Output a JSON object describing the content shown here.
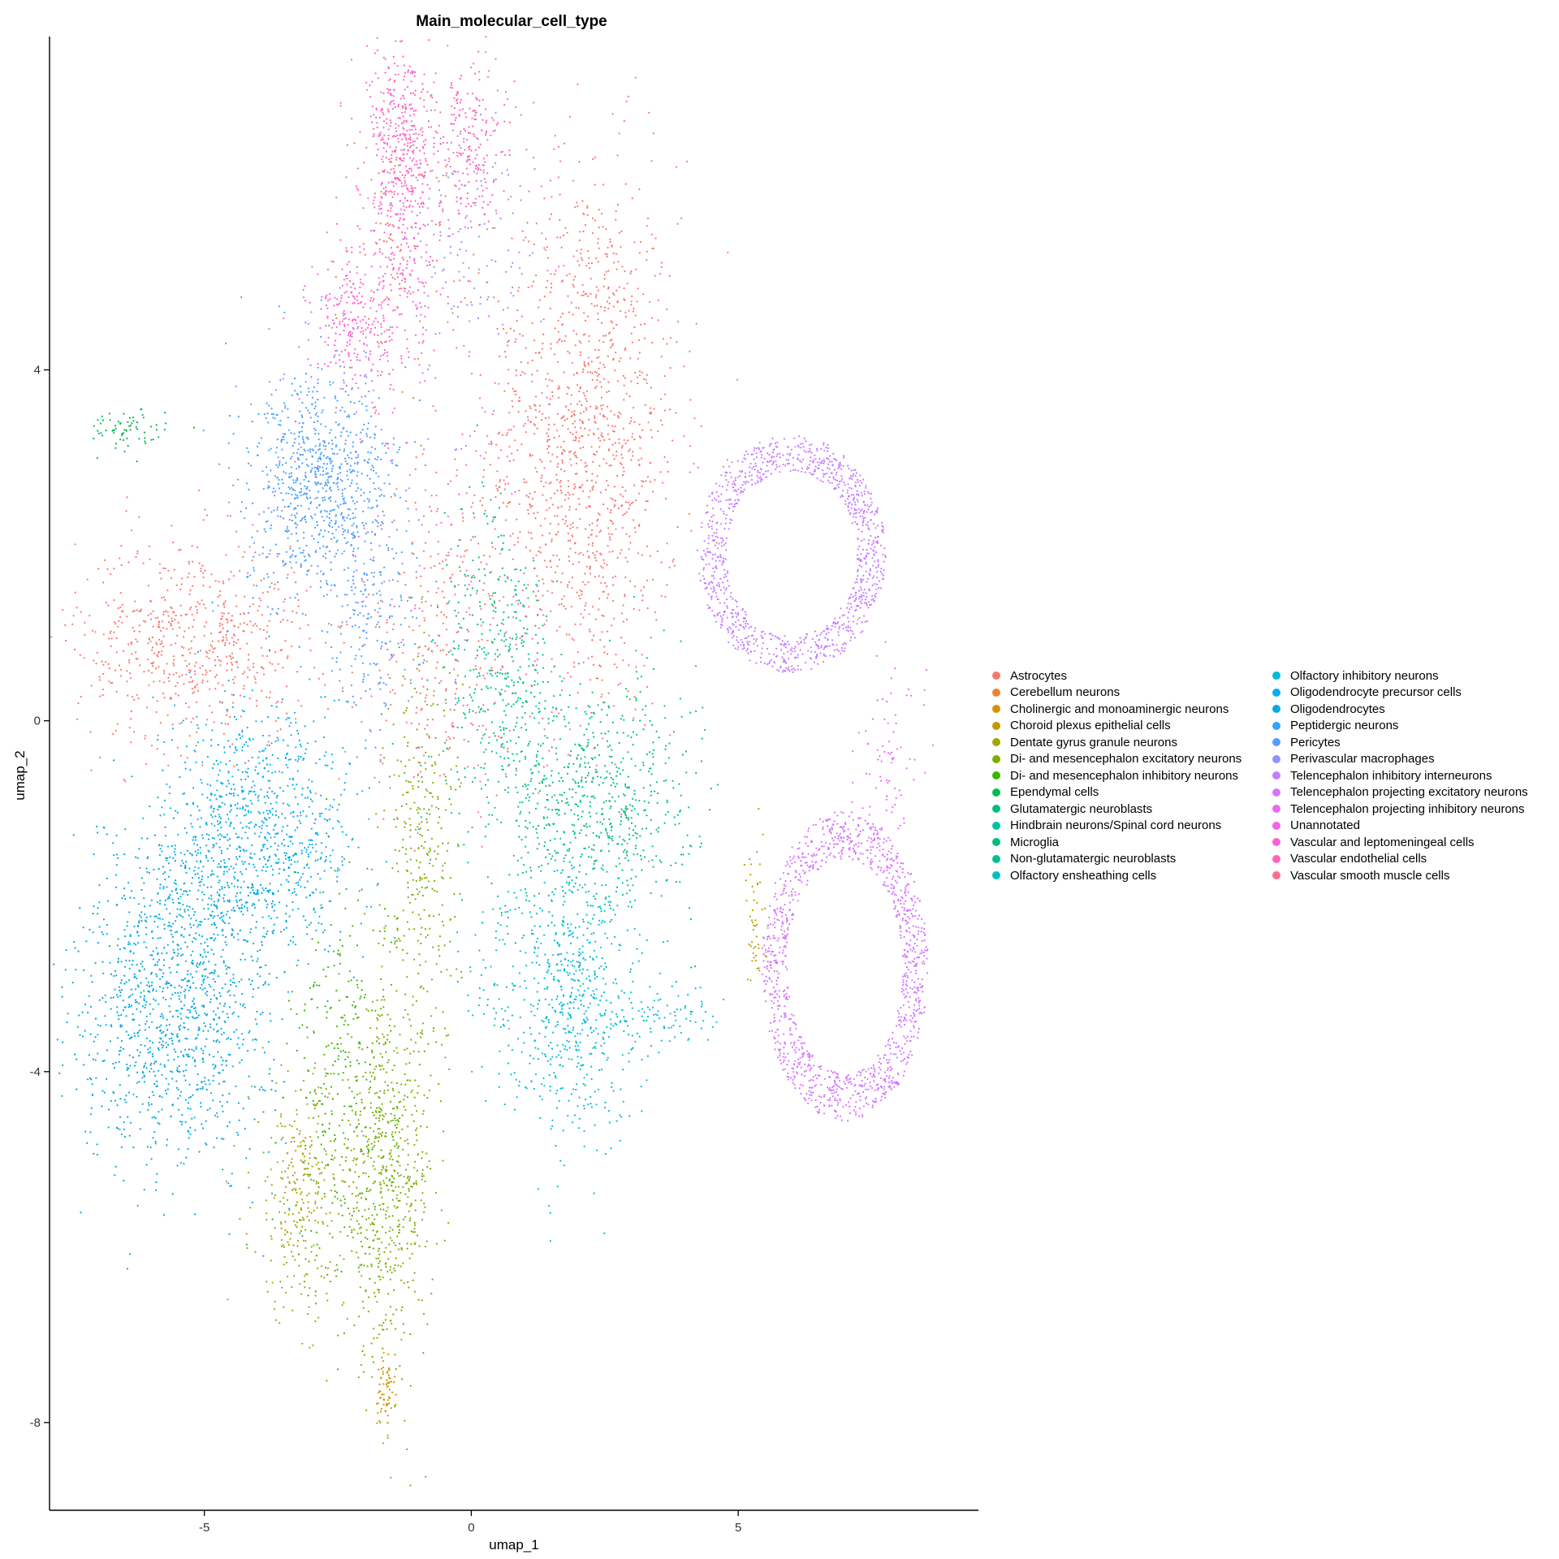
{
  "chart_data": {
    "type": "scatter",
    "title": "Main_molecular_cell_type",
    "xlabel": "umap_1",
    "ylabel": "umap_2",
    "xlim": [
      -7.9,
      9.5
    ],
    "ylim": [
      -9.0,
      7.8
    ],
    "x_ticks": [
      -5,
      0,
      5
    ],
    "y_ticks": [
      4,
      0,
      -4,
      -8
    ],
    "grid": false,
    "legend_position": "right",
    "series": [
      {
        "name": "Astrocytes",
        "color": "#F8766D",
        "clusters": [
          {
            "cx": 2.1,
            "cy": 3.2,
            "sx": 0.9,
            "sy": 1.6,
            "n": 1300
          },
          {
            "cx": -5.2,
            "cy": 0.9,
            "sx": 1.1,
            "sy": 0.6,
            "n": 650
          },
          {
            "cx": -0.6,
            "cy": 0.9,
            "sx": 0.7,
            "sy": 0.9,
            "n": 250
          }
        ]
      },
      {
        "name": "Cerebellum neurons",
        "color": "#EA8331",
        "clusters": [
          {
            "cx": -1.6,
            "cy": 5.0,
            "sx": 0.6,
            "sy": 1.0,
            "n": 60
          }
        ]
      },
      {
        "name": "Cholinergic and monoaminergic neurons",
        "color": "#D89000",
        "clusters": [
          {
            "cx": -1.6,
            "cy": -7.6,
            "sx": 0.08,
            "sy": 0.25,
            "n": 70
          }
        ]
      },
      {
        "name": "Choroid plexus epithelial cells",
        "color": "#C09B00",
        "clusters": [
          {
            "cx": 5.3,
            "cy": -2.4,
            "sx": 0.12,
            "sy": 0.5,
            "n": 50
          }
        ]
      },
      {
        "name": "Dentate gyrus granule neurons",
        "color": "#A3A500",
        "clusters": [
          {
            "cx": -3.2,
            "cy": -5.4,
            "sx": 0.45,
            "sy": 0.7,
            "n": 300
          }
        ]
      },
      {
        "name": "Di- and mesencephalon excitatory neurons",
        "color": "#7CAE00",
        "clusters": [
          {
            "cx": -1.6,
            "cy": -5.2,
            "sx": 0.45,
            "sy": 1.0,
            "n": 650
          },
          {
            "cx": -0.9,
            "cy": -1.5,
            "sx": 0.35,
            "sy": 1.2,
            "n": 300
          }
        ]
      },
      {
        "name": "Di- and mesencephalon inhibitory neurons",
        "color": "#39B600",
        "clusters": [
          {
            "cx": -2.4,
            "cy": -4.2,
            "sx": 0.5,
            "sy": 1.2,
            "n": 300
          }
        ]
      },
      {
        "name": "Ependymal cells",
        "color": "#00BB4E",
        "clusters": [
          {
            "cx": -6.5,
            "cy": 3.3,
            "sx": 0.4,
            "sy": 0.12,
            "n": 70
          }
        ]
      },
      {
        "name": "Glutamatergic neuroblasts",
        "color": "#00BF7D",
        "clusters": [
          {
            "cx": 0.4,
            "cy": 1.2,
            "sx": 0.5,
            "sy": 0.8,
            "n": 150
          }
        ]
      },
      {
        "name": "Hindbrain neurons/Spinal cord neurons",
        "color": "#00C1A3",
        "clusters": [
          {
            "cx": 0.8,
            "cy": -0.2,
            "sx": 0.6,
            "sy": 0.7,
            "n": 150
          }
        ]
      },
      {
        "name": "Microglia",
        "color": "#00BF7D",
        "clusters": [
          {
            "cx": 2.4,
            "cy": -0.9,
            "sx": 0.9,
            "sy": 0.7,
            "n": 650
          }
        ]
      },
      {
        "name": "Non-glutamatergic neuroblasts",
        "color": "#00C08B",
        "clusters": [
          {
            "cx": 0.6,
            "cy": 0.6,
            "sx": 0.5,
            "sy": 0.6,
            "n": 120
          }
        ]
      },
      {
        "name": "Olfactory ensheathing cells",
        "color": "#00BFC4",
        "clusters": [
          {
            "cx": 0.6,
            "cy": -3.0,
            "sx": 0.35,
            "sy": 0.7,
            "n": 80
          }
        ]
      },
      {
        "name": "Olfactory inhibitory neurons",
        "color": "#00BCD8",
        "clusters": [
          {
            "cx": 1.9,
            "cy": -3.1,
            "sx": 0.6,
            "sy": 0.8,
            "n": 600
          },
          {
            "cx": 3.5,
            "cy": -3.4,
            "sx": 0.6,
            "sy": 0.2,
            "n": 90
          }
        ]
      },
      {
        "name": "Oligodendrocyte precursor cells",
        "color": "#00B0F6",
        "clusters": [
          {
            "cx": -3.8,
            "cy": -1.0,
            "sx": 0.9,
            "sy": 0.7,
            "n": 600
          }
        ]
      },
      {
        "name": "Oligodendrocytes",
        "color": "#00A9E0",
        "clusters": [
          {
            "cx": -5.6,
            "cy": -3.3,
            "sx": 0.9,
            "sy": 0.9,
            "n": 1100
          },
          {
            "cx": -4.5,
            "cy": -1.9,
            "sx": 0.9,
            "sy": 0.6,
            "n": 500
          }
        ]
      },
      {
        "name": "Peptidergic neurons",
        "color": "#35A2FF",
        "clusters": [
          {
            "cx": -2.9,
            "cy": 2.8,
            "sx": 0.6,
            "sy": 0.5,
            "n": 250
          }
        ]
      },
      {
        "name": "Pericytes",
        "color": "#529EFF",
        "clusters": [
          {
            "cx": -2.8,
            "cy": 2.6,
            "sx": 0.7,
            "sy": 0.7,
            "n": 600
          },
          {
            "cx": -1.8,
            "cy": 1.4,
            "sx": 0.4,
            "sy": 0.9,
            "n": 200
          }
        ]
      },
      {
        "name": "Perivascular macrophages",
        "color": "#9590FF",
        "clusters": [
          {
            "cx": -0.2,
            "cy": 5.5,
            "sx": 0.6,
            "sy": 1.0,
            "n": 150
          }
        ]
      },
      {
        "name": "Telencephalon inhibitory interneurons",
        "color": "#C77CFF",
        "ring": {
          "cx": 6.0,
          "cy": 1.9,
          "rx": 1.7,
          "ry": 1.3,
          "n": 1100
        }
      },
      {
        "name": "Telencephalon projecting excitatory neurons",
        "color": "#D575FE",
        "ring": {
          "cx": 7.0,
          "cy": -2.8,
          "rx": 1.5,
          "ry": 1.7,
          "n": 1200
        }
      },
      {
        "name": "Telencephalon projecting inhibitory neurons",
        "color": "#E76BF3",
        "clusters": [
          {
            "cx": 7.8,
            "cy": -0.6,
            "sx": 0.3,
            "sy": 0.5,
            "n": 80
          }
        ]
      },
      {
        "name": "Unannotated",
        "color": "#F564E3",
        "clusters": [
          {
            "cx": -0.5,
            "cy": 2.5,
            "sx": 1.5,
            "sy": 1.8,
            "n": 150
          }
        ]
      },
      {
        "name": "Vascular and leptomeningeal cells",
        "color": "#FD61D1",
        "clusters": [
          {
            "cx": -1.3,
            "cy": 5.9,
            "sx": 0.35,
            "sy": 0.9,
            "n": 350
          },
          {
            "cx": -2.2,
            "cy": 4.5,
            "sx": 0.4,
            "sy": 0.4,
            "n": 250
          }
        ]
      },
      {
        "name": "Vascular endothelial cells",
        "color": "#FF62BC",
        "clusters": [
          {
            "cx": 0.0,
            "cy": 6.6,
            "sx": 0.3,
            "sy": 0.5,
            "n": 200
          },
          {
            "cx": -1.3,
            "cy": 6.7,
            "sx": 0.25,
            "sy": 0.4,
            "n": 150
          }
        ]
      },
      {
        "name": "Vascular smooth muscle cells",
        "color": "#FF6C91",
        "clusters": [
          {
            "cx": -1.2,
            "cy": 6.2,
            "sx": 0.5,
            "sy": 0.8,
            "n": 150
          }
        ]
      }
    ]
  }
}
